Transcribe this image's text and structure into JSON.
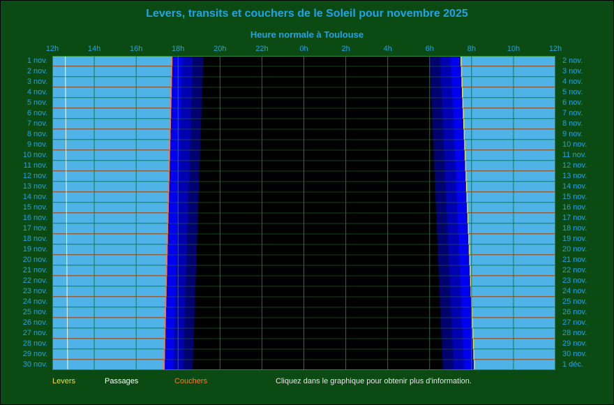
{
  "chart_data": {
    "type": "table",
    "title": "Levers, transits et couchers de le Soleil pour novembre 2025",
    "subtitle": "Heure normale à Toulouse",
    "x_ticks": [
      "12h",
      "14h",
      "16h",
      "18h",
      "20h",
      "22h",
      "0h",
      "2h",
      "4h",
      "6h",
      "8h",
      "10h",
      "12h"
    ],
    "x_range_hours": [
      12,
      36
    ],
    "left_days": [
      "1 nov.",
      "2 nov.",
      "3 nov.",
      "4 nov.",
      "5 nov.",
      "6 nov.",
      "7 nov.",
      "8 nov.",
      "9 nov.",
      "10 nov.",
      "11 nov.",
      "12 nov.",
      "13 nov.",
      "14 nov.",
      "15 nov.",
      "16 nov.",
      "17 nov.",
      "18 nov.",
      "19 nov.",
      "20 nov.",
      "21 nov.",
      "22 nov.",
      "23 nov.",
      "24 nov.",
      "25 nov.",
      "26 nov.",
      "27 nov.",
      "28 nov.",
      "29 nov.",
      "30 nov."
    ],
    "right_days": [
      "2 nov.",
      "3 nov.",
      "4 nov.",
      "5 nov.",
      "6 nov.",
      "7 nov.",
      "8 nov.",
      "9 nov.",
      "10 nov.",
      "11 nov.",
      "12 nov.",
      "13 nov.",
      "14 nov.",
      "15 nov.",
      "16 nov.",
      "17 nov.",
      "18 nov.",
      "19 nov.",
      "20 nov.",
      "21 nov.",
      "22 nov.",
      "23 nov.",
      "24 nov.",
      "25 nov.",
      "26 nov.",
      "27 nov.",
      "28 nov.",
      "29 nov.",
      "30 nov.",
      "1 déc."
    ],
    "transit_hours_first_last": [
      12.62,
      12.73
    ],
    "sunset_hours_first_last": [
      17.7,
      17.33
    ],
    "sunrise_hours_first_last": [
      7.5,
      8.13
    ],
    "twilight_end_hours_first_last": [
      19.2,
      18.7
    ],
    "twilight_start_hours_first_last": [
      6.0,
      6.62
    ]
  },
  "legend": {
    "rise": "Levers",
    "transit": "Passages",
    "set": "Couchers",
    "note": "Cliquez dans le graphique pour obtenir plus d'information."
  },
  "colors": {
    "background": "#0b4a12",
    "day": "#4fb3e8",
    "night": "#000000",
    "twilight1": "#0000ee",
    "twilight2": "#0000b0",
    "twilight3": "#00006e",
    "grid": "#1e7a2e",
    "row_line_day": "#c0503a",
    "transit_line": "#ffffff",
    "sunset_line": "#ff7a2a",
    "sunrise_line": "#e8e23a",
    "text": "#1fa3e8"
  }
}
